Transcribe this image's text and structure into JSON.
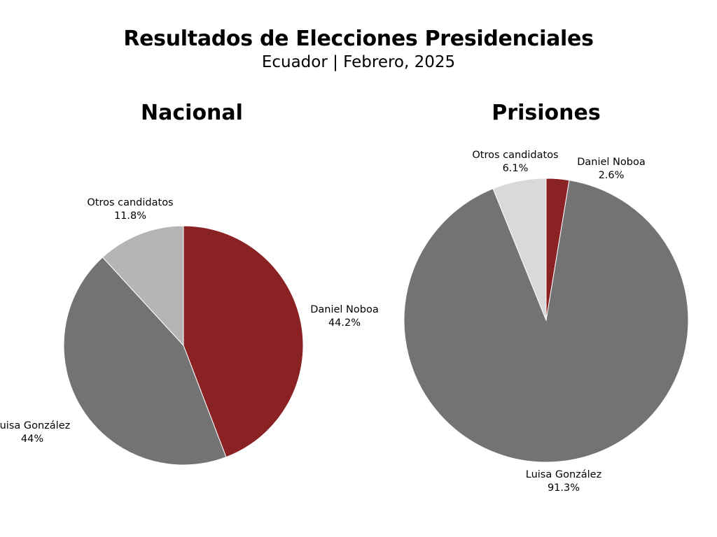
{
  "title": "Resultados de Elecciones Presidenciales",
  "subtitle": "Ecuador | Febrero, 2025",
  "chart_data": [
    {
      "type": "pie",
      "title": "Nacional",
      "start": "top, clockwise",
      "slices": [
        {
          "label": "Daniel Noboa",
          "value": 44.2,
          "display": "44.2%",
          "color": "#8a2123"
        },
        {
          "label": "Luisa González",
          "value": 44,
          "display": "44%",
          "color": "#737373"
        },
        {
          "label": "Otros candidatos",
          "value": 11.8,
          "display": "11.8%",
          "color": "#b5b5b5"
        }
      ]
    },
    {
      "type": "pie",
      "title": "Prisiones",
      "start": "top, clockwise",
      "slices": [
        {
          "label": "Daniel Noboa",
          "value": 2.6,
          "display": "2.6%",
          "color": "#8a2123"
        },
        {
          "label": "Luisa González",
          "value": 91.3,
          "display": "91.3%",
          "color": "#737373"
        },
        {
          "label": "Otros candidatos",
          "value": 6.1,
          "display": "6.1%",
          "color": "#d9d9d9"
        }
      ]
    }
  ]
}
